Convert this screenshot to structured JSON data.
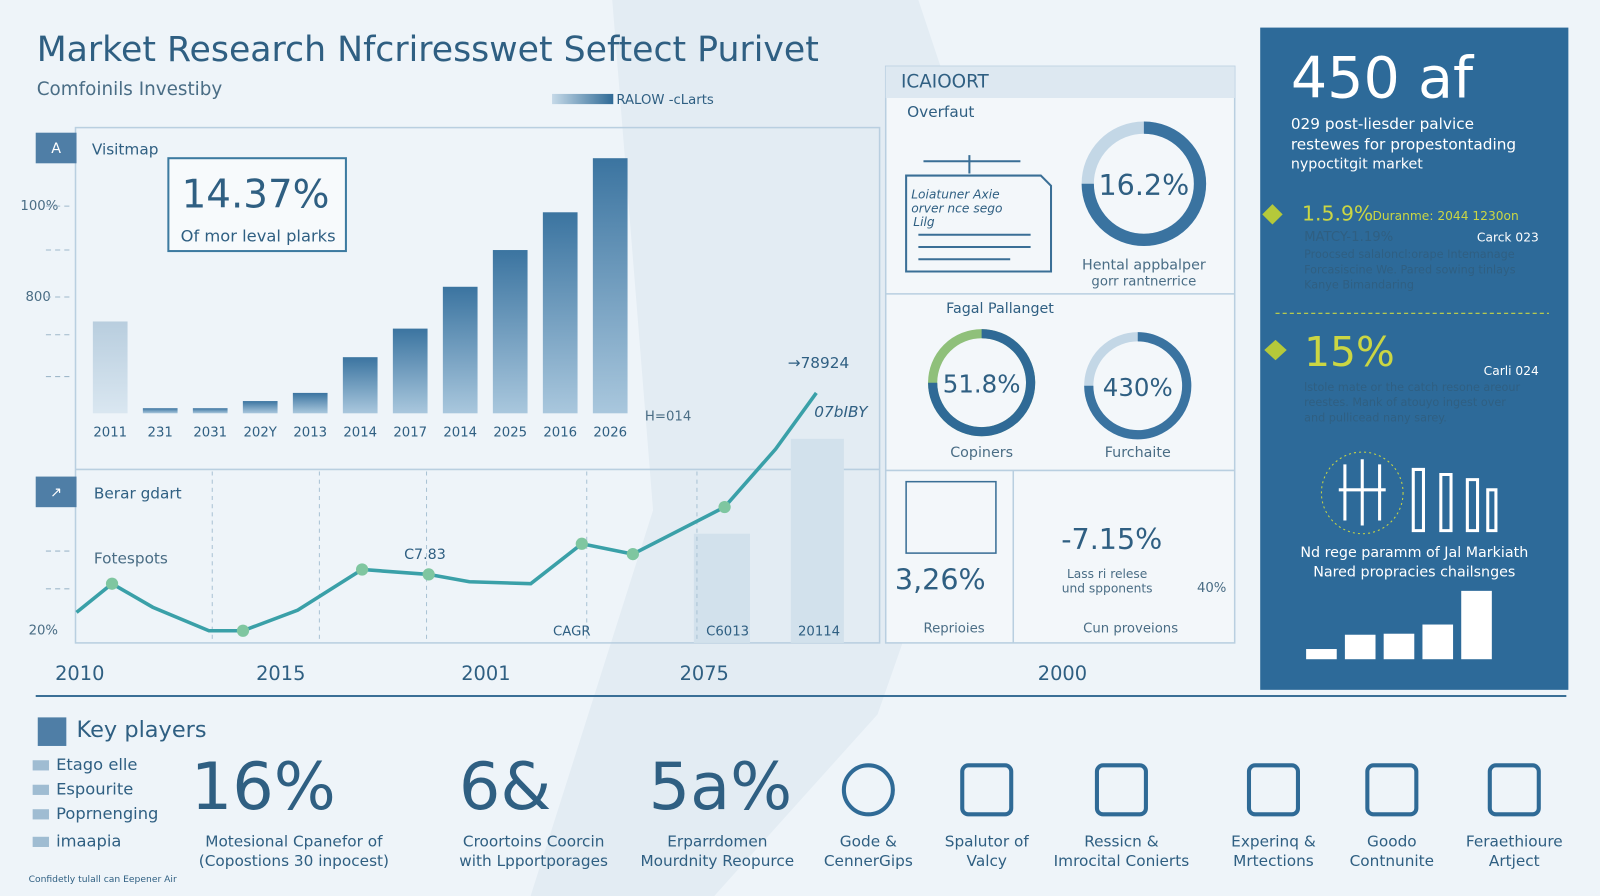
{
  "header": {
    "title": "Market Research  Nfcriresswet Seftect Purivet",
    "subtitle": "Comfoinils Investiby",
    "legend": "RALOW -cLarts"
  },
  "bar_panel": {
    "icon": "A",
    "title": "Visitmap",
    "stat": "14.37%",
    "stat_caption": "Of mor leval plarks",
    "yticks": [
      "100%",
      "800"
    ],
    "categories": [
      "2011",
      "231",
      "2031",
      "202Y",
      "2013",
      "2014",
      "2017",
      "2014",
      "2025",
      "2016",
      "2026"
    ],
    "values": [
      90,
      5,
      5,
      12,
      20,
      55,
      83,
      124,
      160,
      197,
      250
    ],
    "ylim": [
      0,
      250
    ],
    "note": "H=014",
    "callout": "→78924",
    "callout2": "07bIBY"
  },
  "line_panel": {
    "icon": "↗",
    "title": "Berar gdart",
    "subtitle": "Fotespots",
    "ytick": "20%",
    "labels": [
      "C7.83",
      "CAGR",
      "C6013",
      "20114"
    ],
    "x": [
      0,
      4.8,
      10.3,
      17.9,
      22.5,
      29.9,
      38.6,
      47.6,
      53.1,
      61.4,
      68.3,
      75.2,
      87.6,
      94.5,
      100
    ],
    "y": [
      8.3,
      20,
      10.4,
      0.8,
      0.8,
      9.2,
      25.8,
      23.8,
      20.8,
      20,
      36.3,
      32.1,
      51.3,
      75,
      97.9
    ],
    "xlim": [
      0,
      100
    ],
    "ylim": [
      0,
      100
    ],
    "xaxis": [
      "2010",
      "2015",
      "2001",
      "2075",
      "2000"
    ]
  },
  "report_panel": {
    "header": "ICAIOORT",
    "subheader": "Overfaut",
    "sketch": [
      "Loiatuner Axie",
      "orver nce sego",
      "Lilg"
    ],
    "donut": "16.2%",
    "donut_caption": [
      "Hental appbalper",
      "gorr rantnerrice"
    ],
    "title2": "Fagal Pallanget",
    "donut2": "51.8%",
    "donut2_caption": "Copiners",
    "donut3": "430%",
    "donut3_caption": "Furchaite",
    "stat3": "3,26%",
    "stat3_caption": "Reprioies",
    "stat4": "-7.15%",
    "stat4_text": [
      "Lass ri relese",
      "und spponents"
    ],
    "stat4_small": "40%",
    "stat4_caption": "Cun proveions"
  },
  "side_panel": {
    "big": "450 af",
    "intro": [
      "029 post-liesder palvice",
      "restewes for propestontading",
      "nypoctitgit market"
    ],
    "item1": {
      "value": "1.5.9%",
      "label": "Duranme: 2044 1230on",
      "sub": "MATCY-1.19%",
      "tag": "Carck 023",
      "body": [
        "Proocsed salaloncl:orape Intemanage",
        "Forcasiscine We. Pared sowing tinlays",
        "Kanye Bimandaring"
      ]
    },
    "item2": {
      "value": "15%",
      "tag": "Carli 024",
      "body": [
        "lstole mate or the catch resone areour",
        "reestes. Mank of atouyo ingest over",
        "and pullicead nany sarey."
      ]
    },
    "footer": [
      "Nd rege paramm of Jal Markiath",
      "Nared propracies chailsnges"
    ],
    "bars": [
      10,
      24,
      25,
      34,
      67
    ]
  },
  "key_players": {
    "title": "Key players",
    "list": [
      "Etago elle",
      "Espourite",
      "Poprnenging",
      "imaapia"
    ],
    "stats": [
      {
        "value": "16%",
        "caption": [
          "Motesional Cpanefor of",
          "(Copostions 30 inpocest)"
        ]
      },
      {
        "value": "6&",
        "caption": [
          "Croortoins Coorcin",
          "with Lpportporages"
        ]
      },
      {
        "value": "5a%",
        "caption": [
          "Erparrdomen",
          "Mourdnity Reopurce"
        ]
      }
    ],
    "icons": [
      [
        "Gode &",
        "CennerGips"
      ],
      [
        "Spalutor of",
        "Valcy"
      ],
      [
        "Ressicn &",
        "Imrocital Conierts"
      ],
      [
        "Experinq &",
        "Mrtections"
      ],
      [
        "Goodo",
        "Contnunite"
      ],
      [
        "Feraethioure",
        "Artject"
      ]
    ]
  },
  "footer": "Confidetly tulall can Eepener Air"
}
